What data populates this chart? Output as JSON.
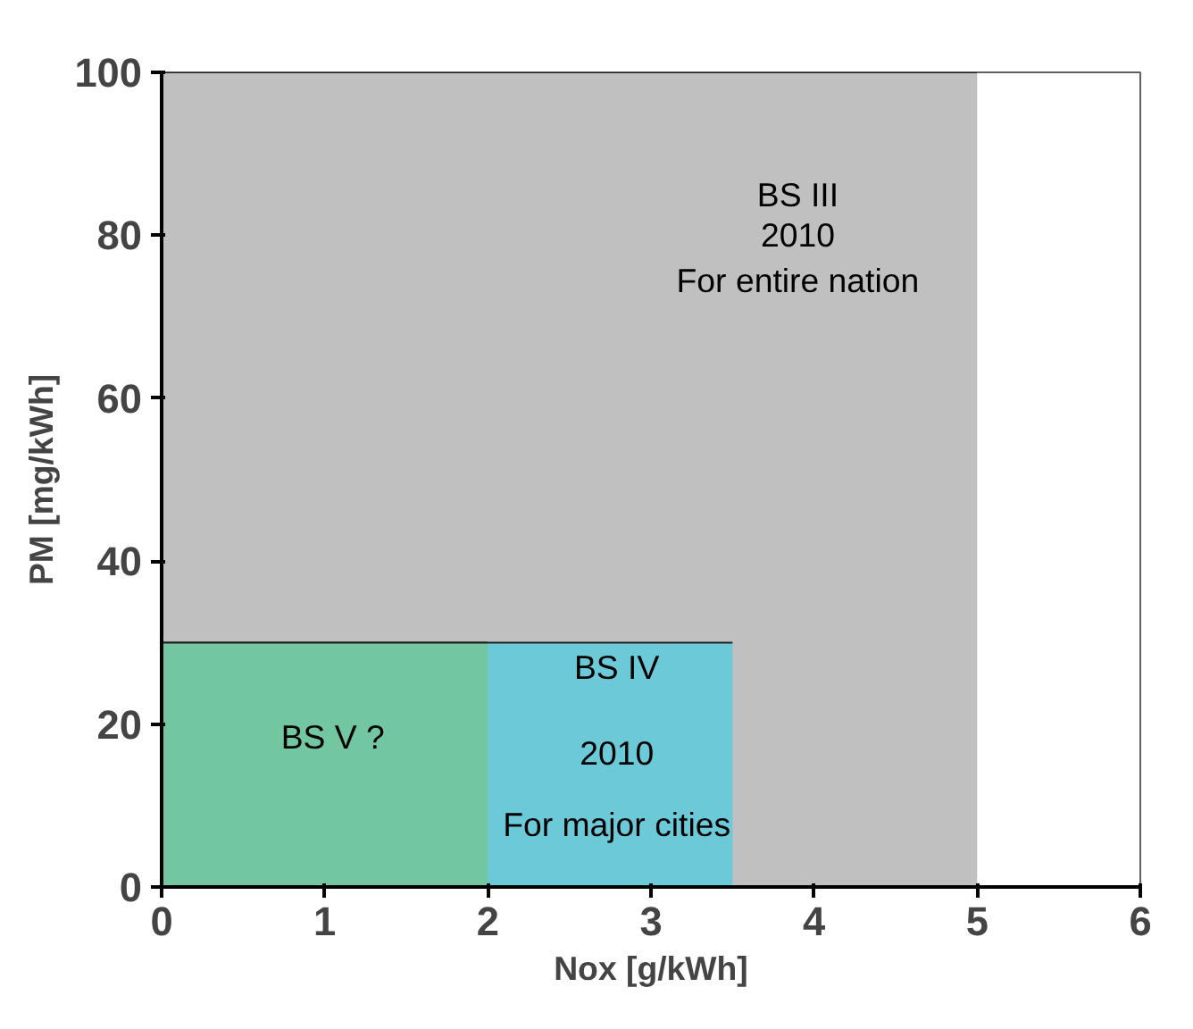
{
  "chart_data": {
    "type": "area",
    "xlabel": "Nox [g/kWh]",
    "ylabel": "PM [mg/kWh]",
    "xlim": [
      0,
      6
    ],
    "ylim": [
      0,
      100
    ],
    "xticks": [
      0,
      1,
      2,
      3,
      4,
      5,
      6
    ],
    "yticks": [
      0,
      20,
      40,
      60,
      80,
      100
    ],
    "grid": false,
    "series": [
      {
        "color": "#c0c0c0",
        "x": [
          0,
          5
        ],
        "values": [
          100,
          100
        ]
      },
      {
        "color": "#6ccad8",
        "x": [
          0,
          3.5
        ],
        "values": [
          30,
          30
        ]
      },
      {
        "color": "#72c6a0",
        "x": [
          0,
          2
        ],
        "values": [
          30,
          30
        ]
      }
    ],
    "annotations": [
      "BS III",
      "2010",
      "For entire nation",
      "BS IV",
      "2010",
      "For major cities",
      "BS V ?"
    ]
  }
}
